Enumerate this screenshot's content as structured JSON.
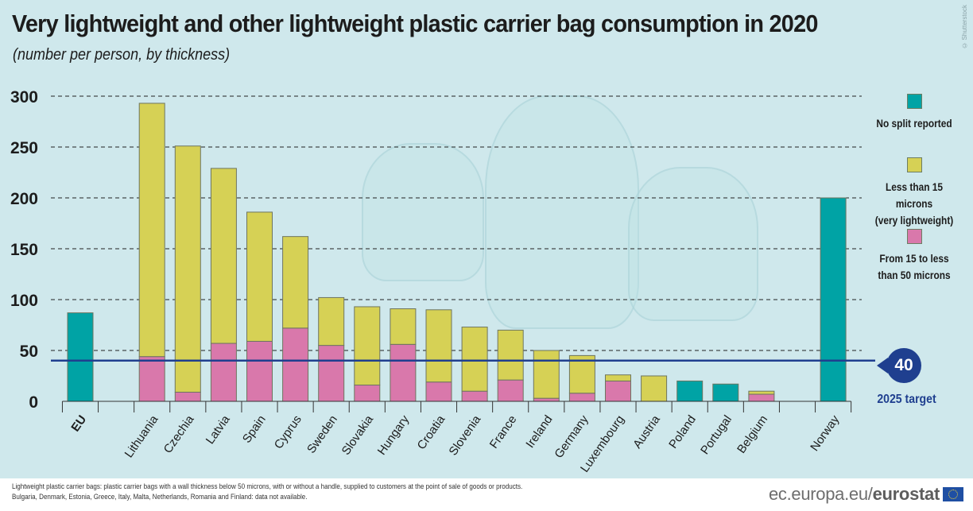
{
  "header": {
    "title": "Very lightweight and other lightweight plastic carrier bag consumption in 2020",
    "subtitle": "(number per person, by thickness)",
    "credit": "© Shutterstock"
  },
  "colors": {
    "background": "#cfe8ec",
    "no_split": "#00a3a5",
    "very_lightweight": "#d6d155",
    "lightweight_15_50": "#d978ab",
    "target_line": "#1f3f8f"
  },
  "legend": [
    {
      "key": "no_split",
      "label_lines": [
        "No split reported"
      ]
    },
    {
      "key": "very_lightweight",
      "label_lines": [
        "Less than 15 microns",
        "(very lightweight)"
      ]
    },
    {
      "key": "lightweight_15_50",
      "label_lines": [
        "From 15 to less",
        "than 50 microns"
      ]
    }
  ],
  "target": {
    "value": "40",
    "label": "2025 target"
  },
  "footer": {
    "note_1": "Lightweight plastic carrier bags: plastic carrier bags with a wall thickness below 50 microns, with or without a handle, supplied to customers at the point of sale of goods or products.",
    "note_2": "Bulgaria, Denmark, Estonia, Greece, Italy, Malta, Netherlands, Romania and Finland: data not available.",
    "brand_prefix": "ec.europa.eu/",
    "brand_bold": "eurostat"
  },
  "chart_data": {
    "type": "bar",
    "stacked": true,
    "title": "Very lightweight and other lightweight plastic carrier bag consumption in 2020",
    "subtitle": "(number per person, by thickness)",
    "xlabel": "",
    "ylabel": "",
    "ylim": [
      0,
      300
    ],
    "yticks": [
      0,
      50,
      100,
      150,
      200,
      250,
      300
    ],
    "grid": true,
    "legend_position": "right",
    "categories": [
      "EU",
      "",
      "Lithuania",
      "Czechia",
      "Latvia",
      "Spain",
      "Cyprus",
      "Sweden",
      "Slovakia",
      "Hungary",
      "Croatia",
      "Slovenia",
      "France",
      "Ireland",
      "Germany",
      "Luxembourg",
      "Austria",
      "Poland",
      "Portugal",
      "Belgium",
      "",
      "Norway"
    ],
    "bold_categories": [
      "EU"
    ],
    "series": [
      {
        "name": "From 15 to less than 50 microns",
        "key": "lightweight_15_50",
        "values": [
          null,
          null,
          44,
          9,
          57,
          59,
          72,
          55,
          16,
          56,
          19,
          10,
          21,
          3,
          8,
          20,
          null,
          null,
          null,
          7,
          null,
          null
        ]
      },
      {
        "name": "Less than 15 microns (very lightweight)",
        "key": "very_lightweight",
        "values": [
          null,
          null,
          249,
          242,
          172,
          127,
          90,
          47,
          77,
          35,
          71,
          63,
          49,
          47,
          37,
          6,
          25,
          null,
          null,
          3,
          null,
          null
        ]
      },
      {
        "name": "No split reported",
        "key": "no_split",
        "values": [
          87,
          null,
          null,
          null,
          null,
          null,
          null,
          null,
          null,
          null,
          null,
          null,
          null,
          null,
          null,
          null,
          null,
          20,
          17,
          null,
          null,
          200
        ]
      }
    ],
    "reference_line": {
      "value": 40,
      "label": "2025 target"
    }
  }
}
